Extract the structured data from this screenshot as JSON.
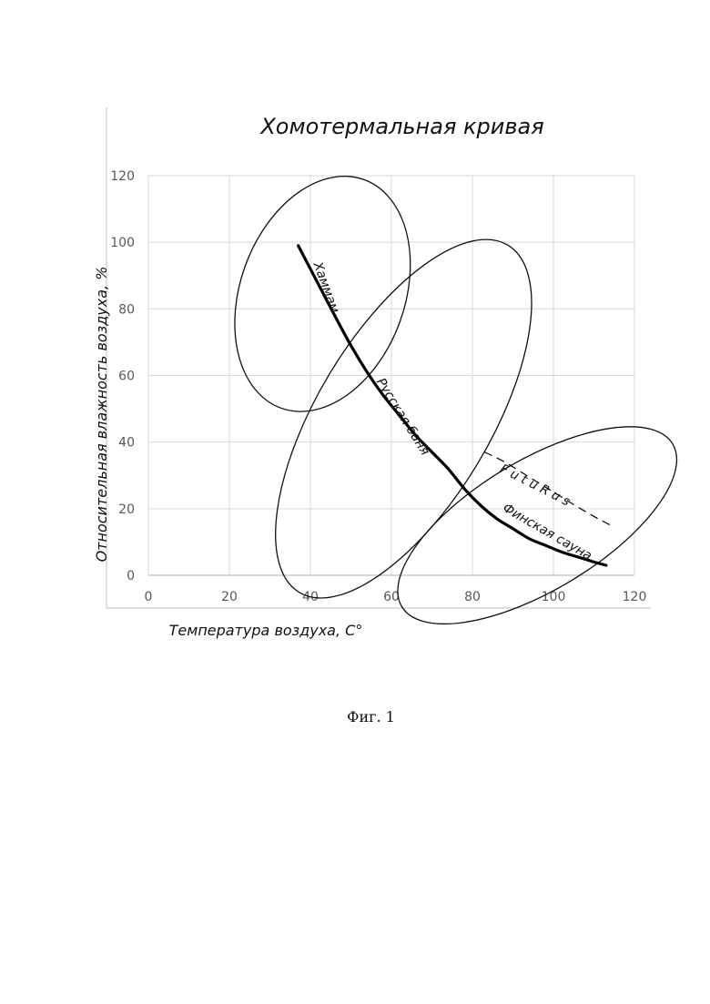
{
  "chart_data": {
    "type": "line",
    "title": "Хомотермальная кривая",
    "xlabel": "Температура воздуха, С°",
    "ylabel": "Относительная влажность воздуха, %",
    "xlim": [
      0,
      120
    ],
    "ylim": [
      0,
      120
    ],
    "x_ticks": [
      "0",
      "20",
      "40",
      "60",
      "80",
      "100",
      "120"
    ],
    "y_ticks": [
      "0",
      "20",
      "40",
      "60",
      "80",
      "100",
      "120"
    ],
    "grid": true,
    "series": [
      {
        "style": "solid-thick",
        "x": [
          37,
          40,
          43,
          46,
          50,
          54,
          58,
          62,
          66,
          70,
          74,
          78,
          82,
          86,
          90,
          94,
          98,
          102,
          106,
          110,
          113
        ],
        "y": [
          99,
          92,
          85,
          78,
          69,
          61,
          54,
          48,
          42,
          37,
          32,
          26,
          21,
          17,
          14,
          11,
          9,
          7,
          5.5,
          4,
          3
        ]
      },
      {
        "name": "FutuRus",
        "style": "dashed",
        "x": [
          83,
          88,
          94,
          100,
          106,
          111,
          115
        ],
        "y": [
          37,
          34,
          29.5,
          25,
          20.5,
          17,
          14.5
        ]
      }
    ],
    "annotations": [
      {
        "text": "Хаммам",
        "x": 43,
        "y": 86,
        "rotate": 70
      },
      {
        "text": "Русская баня",
        "x": 62,
        "y": 47,
        "rotate": 58
      },
      {
        "text": "Финская сауна",
        "x": 98,
        "y": 12,
        "rotate": 30
      },
      {
        "text": "F u t u R u s",
        "x": 95,
        "y": 26,
        "rotate": 27
      }
    ],
    "regions": [
      {
        "label": "Хаммам",
        "cx": 43,
        "cy": 84.5,
        "rx_deg": 30,
        "ry": 9.5,
        "rot": -70
      },
      {
        "label": "Русская баня",
        "cx": 63,
        "cy": 47,
        "rx_deg": 50,
        "ry": 10,
        "rot": -59
      },
      {
        "label": "Финская сауна",
        "cx": 96,
        "cy": 15,
        "rx_deg": 39,
        "ry": 7.5,
        "rot": -31
      }
    ]
  },
  "caption": "Фиг. 1"
}
